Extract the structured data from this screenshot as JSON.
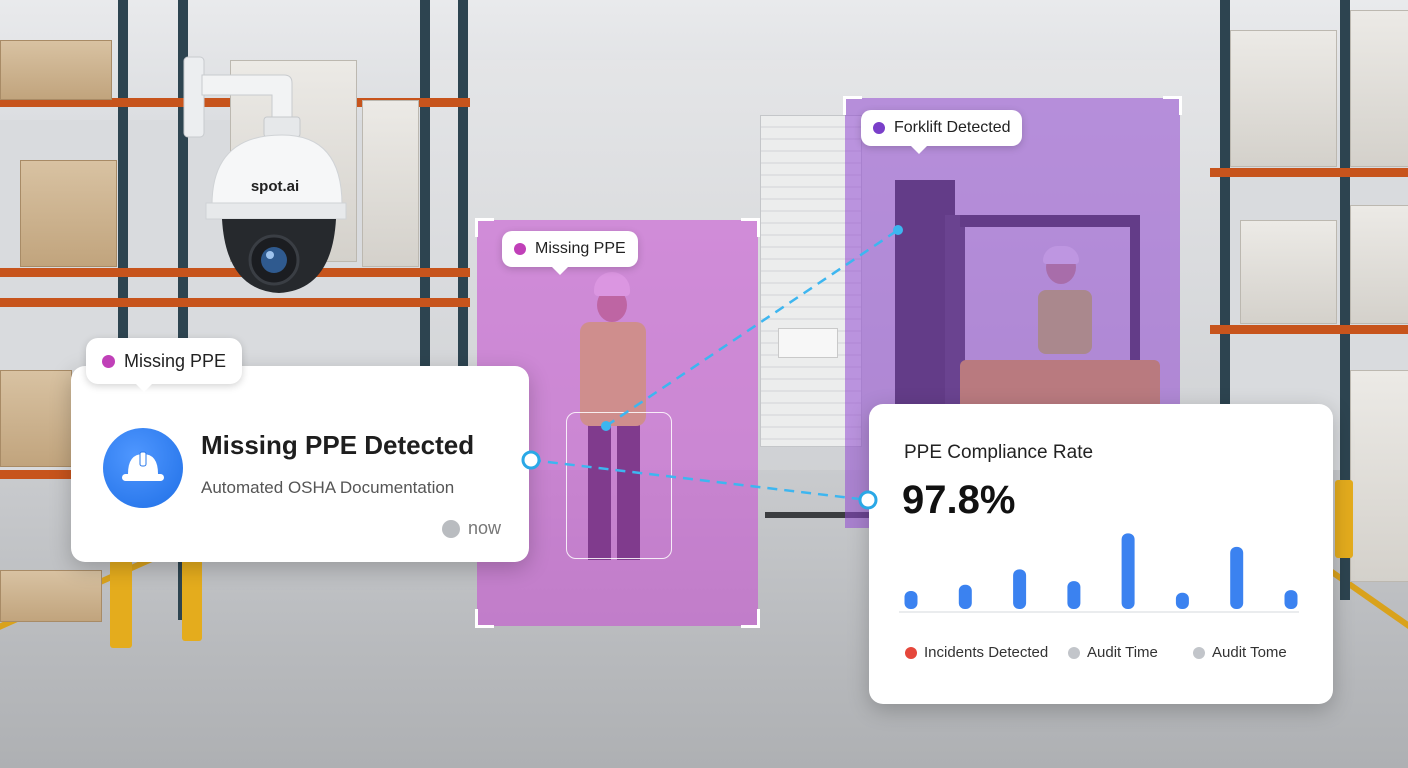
{
  "camera": {
    "brand": "spot.ai"
  },
  "detections": {
    "ppe_tag": {
      "label": "Missing PPE",
      "dot_color": "#c040b8"
    },
    "forklift_tag": {
      "label": "Forklift Detected",
      "dot_color": "#7a3fc9"
    }
  },
  "alert_card": {
    "tag": {
      "label": "Missing PPE",
      "dot_color": "#c040b8"
    },
    "icon": "hard-hat-icon",
    "title": "Missing PPE Detected",
    "subtitle": "Automated OSHA Documentation",
    "time": "now"
  },
  "stats_card": {
    "title": "PPE Compliance Rate",
    "value": "97.8%",
    "legend": [
      {
        "label": "Incidents Detected",
        "color": "#e5473b"
      },
      {
        "label": "Audit Time",
        "color": "#c2c5ca"
      },
      {
        "label": "Audit Tome",
        "color": "#c2c5ca"
      }
    ]
  },
  "chart_data": {
    "type": "bar",
    "bar_color": "#3b82f0",
    "values": [
      20,
      27,
      44,
      31,
      84,
      18,
      69,
      21
    ],
    "ylim": [
      0,
      100
    ]
  }
}
